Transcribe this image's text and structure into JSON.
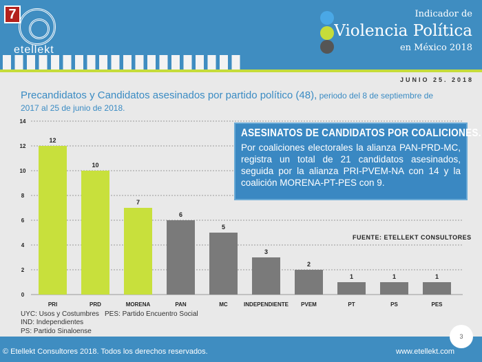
{
  "header": {
    "badge": "7",
    "logo": "etellekt",
    "line1": "Indicador de",
    "line2": "Violencia Política",
    "line3": "en México 2018",
    "dot_colors": [
      "#4aa8e6",
      "#c5dc3a",
      "#555555"
    ]
  },
  "date": "JUNIO 25. 2018",
  "title_main": "Precandidatos y Candidatos asesinados por partido político (48),",
  "title_sub": " periodo del 8 de septiembre de 2017 al 25 de junio de 2018.",
  "box": {
    "heading": "ASESINATOS DE CANDIDATOS POR COALICIONES.",
    "body": "Por coaliciones electorales la alianza PAN-PRD-MC, registra un total de 21 candidatos asesinados, seguida por la alianza PRI-PVEM-NA con 14 y la coalición MORENA-PT-PES con 9."
  },
  "source": "FUENTE: ETELLEKT CONSULTORES",
  "notes": [
    "UYC: Usos y Costumbres",
    "PES: Partido Encuentro Social",
    "IND: Independientes",
    "PS: Partido Sinaloense"
  ],
  "footer": {
    "copyright": "© Etellekt Consultores 2018. Todos los derechos reservados.",
    "website": "www.etellekt.com",
    "page": "3"
  },
  "chart_data": {
    "type": "bar",
    "categories": [
      "PRI",
      "PRD",
      "MORENA",
      "PAN",
      "MC",
      "INDEPENDIENTE",
      "PVEM",
      "PT",
      "PS",
      "PES"
    ],
    "values": [
      12,
      10,
      7,
      6,
      5,
      3,
      2,
      1,
      1,
      1
    ],
    "colors": [
      "#c8e03c",
      "#c8e03c",
      "#c8e03c",
      "#7a7a7a",
      "#7a7a7a",
      "#7a7a7a",
      "#7a7a7a",
      "#7a7a7a",
      "#7a7a7a",
      "#7a7a7a"
    ],
    "ylim": [
      0,
      14
    ],
    "yticks": [
      0,
      2,
      4,
      6,
      8,
      10,
      12,
      14
    ],
    "grid": true
  }
}
